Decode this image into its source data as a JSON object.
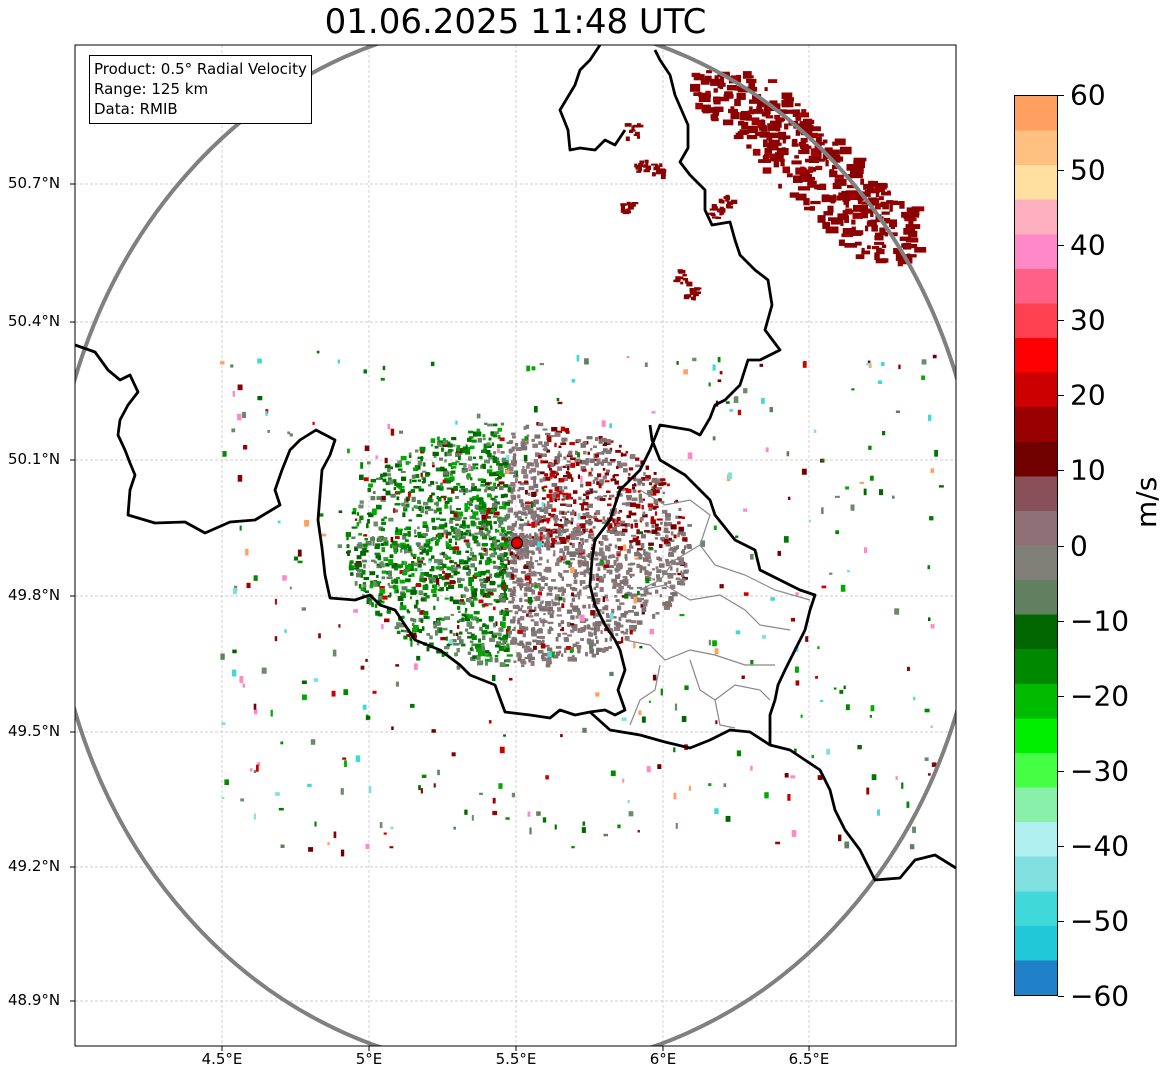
{
  "title": "01.06.2025 11:48 UTC",
  "info": {
    "product": "Product: 0.5° Radial Velocity",
    "range": "Range: 125 km",
    "data": "Data: RMIB"
  },
  "lat_ticks": [
    "50.7°N",
    "50.4°N",
    "50.1°N",
    "49.8°N",
    "49.5°N",
    "49.2°N",
    "48.9°N"
  ],
  "lon_ticks": [
    "4.5°E",
    "5°E",
    "5.5°E",
    "6°E",
    "6.5°E"
  ],
  "colorbar": {
    "unit": "m/s",
    "ticks": [
      "60",
      "50",
      "40",
      "30",
      "20",
      "10",
      "0",
      "−10",
      "−20",
      "−30",
      "−40",
      "−50",
      "−60"
    ],
    "range": [
      -60,
      60
    ],
    "colors": [
      "#ffa060",
      "#ffc080",
      "#ffe0a0",
      "#ffb0c0",
      "#ff88c8",
      "#ff6088",
      "#ff4050",
      "#ff0000",
      "#cc0000",
      "#990000",
      "#700000",
      "#885058",
      "#907078",
      "#808078",
      "#608060",
      "#006600",
      "#008800",
      "#00bb00",
      "#00ee00",
      "#44ff44",
      "#88f0a8",
      "#b0f0f0",
      "#80e0e0",
      "#40d8d8",
      "#20c8d8",
      "#2080c8"
    ]
  },
  "radar_site": {
    "lon": 5.505,
    "lat": 49.914
  },
  "map_extent": {
    "lon": [
      4.0,
      7.0
    ],
    "lat": [
      48.8,
      50.98
    ]
  }
}
